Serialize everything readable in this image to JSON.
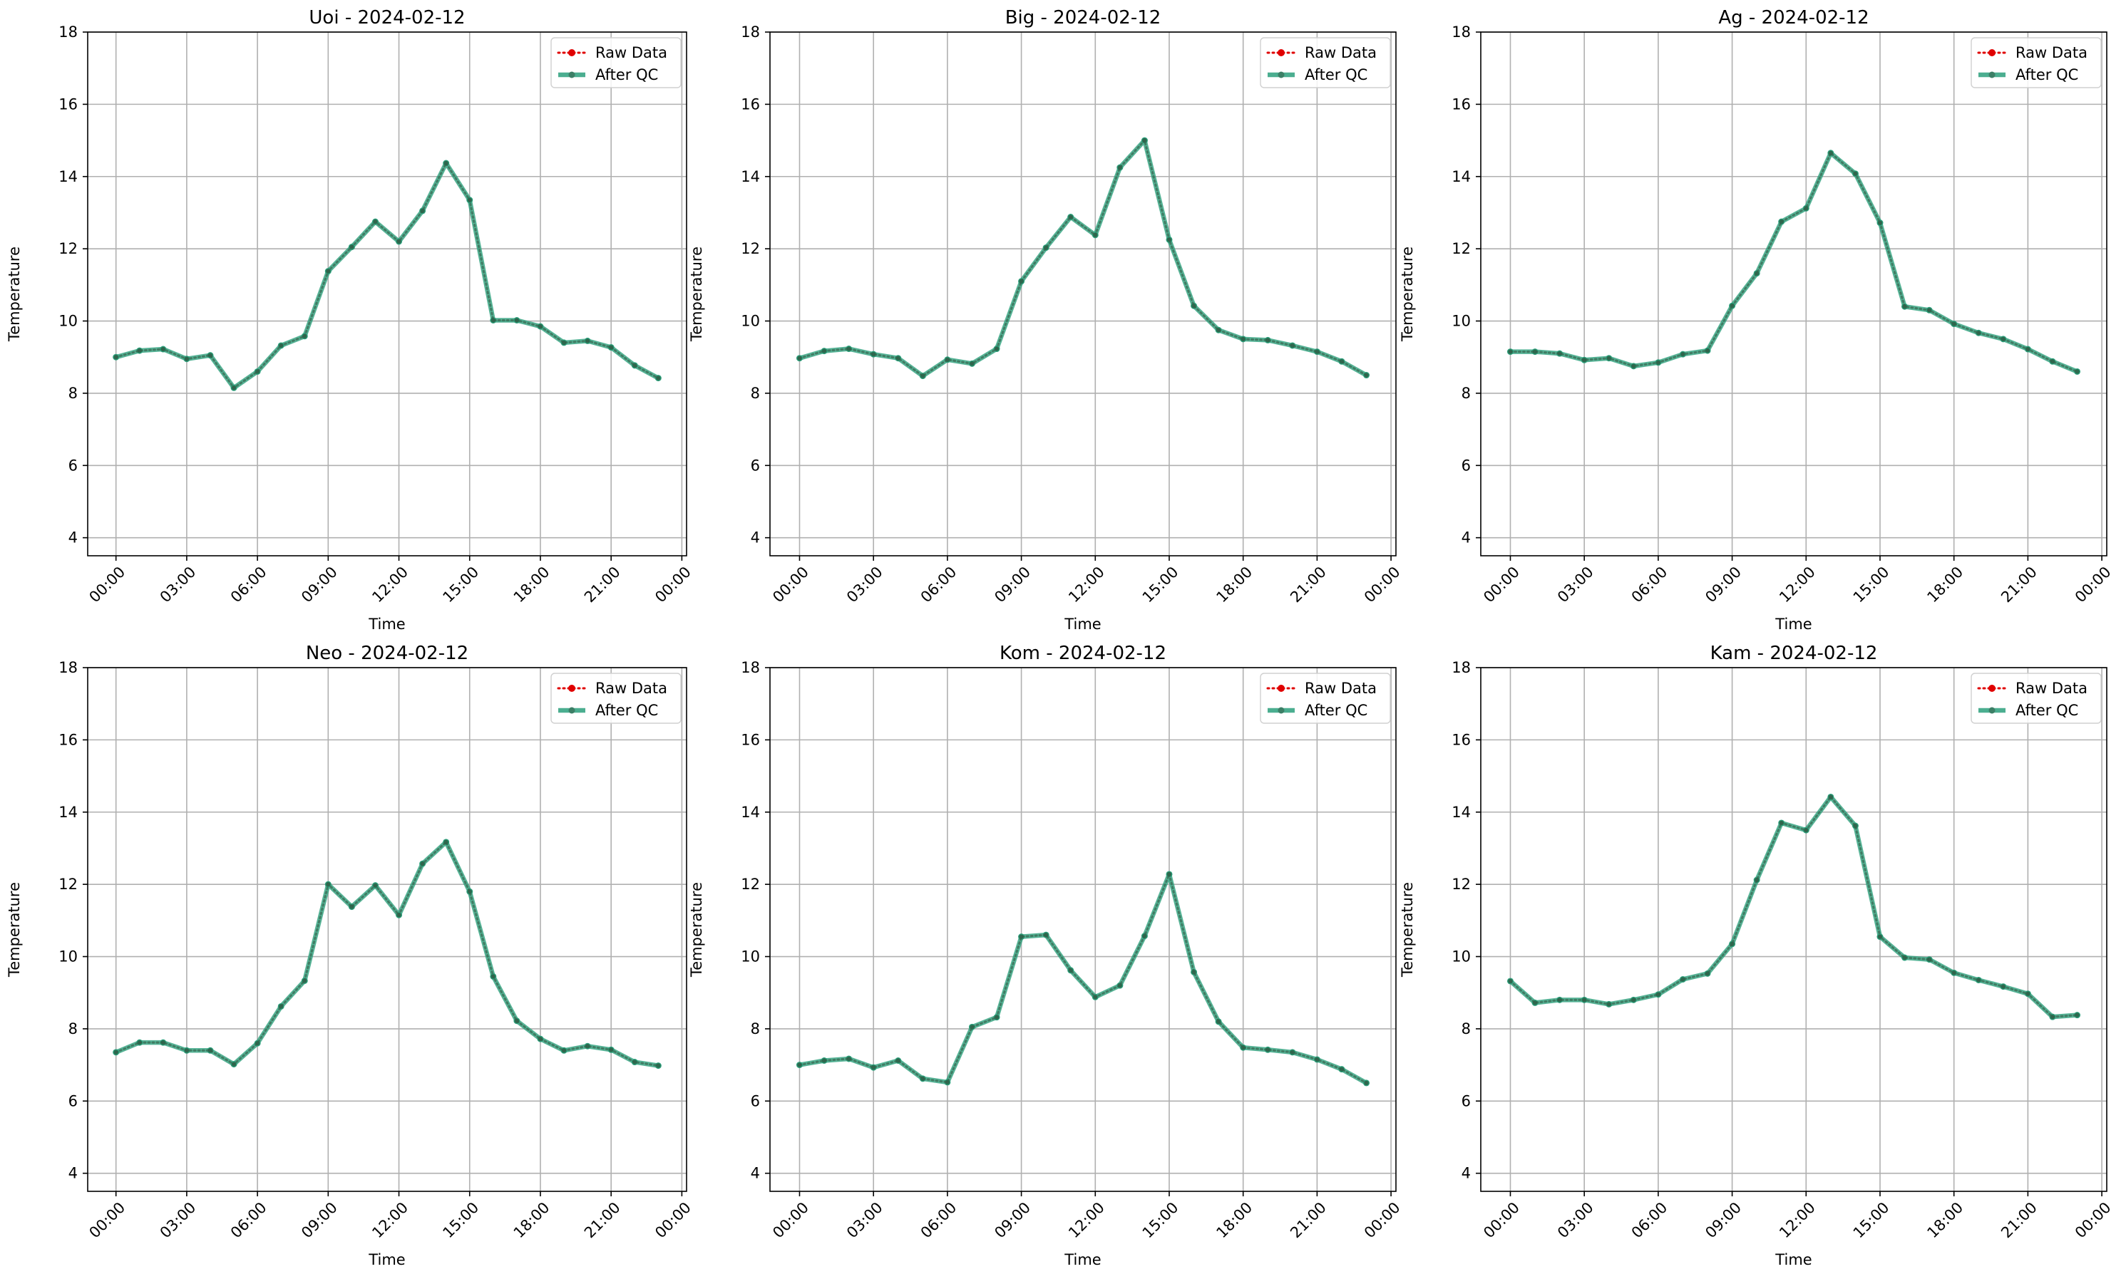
{
  "figure": {
    "panels": [
      {
        "title": "Uoi - 2024-02-12"
      },
      {
        "title": "Big - 2024-02-12"
      },
      {
        "title": "Ag - 2024-02-12"
      },
      {
        "title": "Neo - 2024-02-12"
      },
      {
        "title": "Kom - 2024-02-12"
      },
      {
        "title": "Kam - 2024-02-12"
      }
    ]
  },
  "colors": {
    "raw": "#e00000",
    "qc": "#2ca07c",
    "grid": "#b0b0b0",
    "axis": "#000000"
  },
  "chart_data": [
    {
      "type": "line",
      "title": "Uoi - 2024-02-12",
      "xlabel": "Time",
      "ylabel": "Temperature",
      "x": [
        "00:00",
        "01:00",
        "02:00",
        "03:00",
        "04:00",
        "05:00",
        "06:00",
        "07:00",
        "08:00",
        "09:00",
        "10:00",
        "11:00",
        "12:00",
        "13:00",
        "14:00",
        "15:00",
        "16:00",
        "17:00",
        "18:00",
        "19:00",
        "20:00",
        "21:00",
        "22:00",
        "23:00"
      ],
      "x_ticks": [
        "00:00",
        "03:00",
        "06:00",
        "09:00",
        "12:00",
        "15:00",
        "18:00",
        "21:00",
        "00:00"
      ],
      "y_ticks": [
        4,
        6,
        8,
        10,
        12,
        14,
        16,
        18
      ],
      "ylim": [
        3.5,
        18
      ],
      "legend": "top-right",
      "grid": true,
      "series": [
        {
          "name": "Raw Data",
          "values": [
            9.0,
            9.18,
            9.22,
            8.95,
            9.05,
            8.15,
            8.6,
            9.32,
            9.58,
            11.38,
            12.05,
            12.75,
            12.2,
            13.05,
            14.37,
            13.35,
            10.02,
            10.02,
            9.85,
            9.4,
            9.45,
            9.27,
            8.77,
            8.42
          ]
        },
        {
          "name": "After QC",
          "values": [
            9.0,
            9.18,
            9.22,
            8.95,
            9.05,
            8.15,
            8.6,
            9.32,
            9.58,
            11.38,
            12.05,
            12.75,
            12.2,
            13.05,
            14.37,
            13.35,
            10.02,
            10.02,
            9.85,
            9.4,
            9.45,
            9.27,
            8.77,
            8.42
          ]
        }
      ]
    },
    {
      "type": "line",
      "title": "Big - 2024-02-12",
      "xlabel": "Time",
      "ylabel": "Temperature",
      "x": [
        "00:00",
        "01:00",
        "02:00",
        "03:00",
        "04:00",
        "05:00",
        "06:00",
        "07:00",
        "08:00",
        "09:00",
        "10:00",
        "11:00",
        "12:00",
        "13:00",
        "14:00",
        "15:00",
        "16:00",
        "17:00",
        "18:00",
        "19:00",
        "20:00",
        "21:00",
        "22:00",
        "23:00"
      ],
      "x_ticks": [
        "00:00",
        "03:00",
        "06:00",
        "09:00",
        "12:00",
        "15:00",
        "18:00",
        "21:00",
        "00:00"
      ],
      "y_ticks": [
        4,
        6,
        8,
        10,
        12,
        14,
        16,
        18
      ],
      "ylim": [
        3.5,
        18
      ],
      "legend": "top-right",
      "grid": true,
      "series": [
        {
          "name": "Raw Data",
          "values": [
            8.97,
            9.17,
            9.23,
            9.08,
            8.97,
            8.48,
            8.93,
            8.82,
            9.23,
            11.1,
            12.03,
            12.88,
            12.38,
            14.25,
            15.0,
            12.25,
            10.42,
            9.75,
            9.5,
            9.47,
            9.32,
            9.15,
            8.88,
            8.5
          ]
        },
        {
          "name": "After QC",
          "values": [
            8.97,
            9.17,
            9.23,
            9.08,
            8.97,
            8.48,
            8.93,
            8.82,
            9.23,
            11.1,
            12.03,
            12.88,
            12.38,
            14.25,
            15.0,
            12.25,
            10.42,
            9.75,
            9.5,
            9.47,
            9.32,
            9.15,
            8.88,
            8.5
          ]
        }
      ]
    },
    {
      "type": "line",
      "title": "Ag - 2024-02-12",
      "xlabel": "Time",
      "ylabel": "Temperature",
      "x": [
        "00:00",
        "01:00",
        "02:00",
        "03:00",
        "04:00",
        "05:00",
        "06:00",
        "07:00",
        "08:00",
        "09:00",
        "10:00",
        "11:00",
        "12:00",
        "13:00",
        "14:00",
        "15:00",
        "16:00",
        "17:00",
        "18:00",
        "19:00",
        "20:00",
        "21:00",
        "22:00",
        "23:00"
      ],
      "x_ticks": [
        "00:00",
        "03:00",
        "06:00",
        "09:00",
        "12:00",
        "15:00",
        "18:00",
        "21:00",
        "00:00"
      ],
      "y_ticks": [
        4,
        6,
        8,
        10,
        12,
        14,
        16,
        18
      ],
      "ylim": [
        3.5,
        18
      ],
      "legend": "top-right",
      "grid": true,
      "series": [
        {
          "name": "Raw Data",
          "values": [
            9.15,
            9.15,
            9.1,
            8.92,
            8.97,
            8.75,
            8.85,
            9.08,
            9.18,
            10.42,
            11.32,
            12.75,
            13.12,
            14.65,
            14.08,
            12.72,
            10.4,
            10.3,
            9.92,
            9.67,
            9.5,
            9.22,
            8.88,
            8.6
          ]
        },
        {
          "name": "After QC",
          "values": [
            9.15,
            9.15,
            9.1,
            8.92,
            8.97,
            8.75,
            8.85,
            9.08,
            9.18,
            10.42,
            11.32,
            12.75,
            13.12,
            14.65,
            14.08,
            12.72,
            10.4,
            10.3,
            9.92,
            9.67,
            9.5,
            9.22,
            8.88,
            8.6
          ]
        }
      ]
    },
    {
      "type": "line",
      "title": "Neo - 2024-02-12",
      "xlabel": "Time",
      "ylabel": "Temperature",
      "x": [
        "00:00",
        "01:00",
        "02:00",
        "03:00",
        "04:00",
        "05:00",
        "06:00",
        "07:00",
        "08:00",
        "09:00",
        "10:00",
        "11:00",
        "12:00",
        "13:00",
        "14:00",
        "15:00",
        "16:00",
        "17:00",
        "18:00",
        "19:00",
        "20:00",
        "21:00",
        "22:00",
        "23:00"
      ],
      "x_ticks": [
        "00:00",
        "03:00",
        "06:00",
        "09:00",
        "12:00",
        "15:00",
        "18:00",
        "21:00",
        "00:00"
      ],
      "y_ticks": [
        4,
        6,
        8,
        10,
        12,
        14,
        16,
        18
      ],
      "ylim": [
        3.5,
        18
      ],
      "legend": "top-right",
      "grid": true,
      "series": [
        {
          "name": "Raw Data",
          "values": [
            7.35,
            7.62,
            7.62,
            7.4,
            7.4,
            7.02,
            7.6,
            8.62,
            9.33,
            12.0,
            11.38,
            11.97,
            11.15,
            12.57,
            13.17,
            11.8,
            9.45,
            8.22,
            7.72,
            7.4,
            7.52,
            7.42,
            7.08,
            6.98
          ]
        },
        {
          "name": "After QC",
          "values": [
            7.35,
            7.62,
            7.62,
            7.4,
            7.4,
            7.02,
            7.6,
            8.62,
            9.33,
            12.0,
            11.38,
            11.97,
            11.15,
            12.57,
            13.17,
            11.8,
            9.45,
            8.22,
            7.72,
            7.4,
            7.52,
            7.42,
            7.08,
            6.98
          ]
        }
      ]
    },
    {
      "type": "line",
      "title": "Kom - 2024-02-12",
      "xlabel": "Time",
      "ylabel": "Temperature",
      "x": [
        "00:00",
        "01:00",
        "02:00",
        "03:00",
        "04:00",
        "05:00",
        "06:00",
        "07:00",
        "08:00",
        "09:00",
        "10:00",
        "11:00",
        "12:00",
        "13:00",
        "14:00",
        "15:00",
        "16:00",
        "17:00",
        "18:00",
        "19:00",
        "20:00",
        "21:00",
        "22:00",
        "23:00"
      ],
      "x_ticks": [
        "00:00",
        "03:00",
        "06:00",
        "09:00",
        "12:00",
        "15:00",
        "18:00",
        "21:00",
        "00:00"
      ],
      "y_ticks": [
        4,
        6,
        8,
        10,
        12,
        14,
        16,
        18
      ],
      "ylim": [
        3.5,
        18
      ],
      "legend": "top-right",
      "grid": true,
      "series": [
        {
          "name": "Raw Data",
          "values": [
            7.0,
            7.12,
            7.17,
            6.93,
            7.12,
            6.62,
            6.52,
            8.05,
            8.32,
            10.55,
            10.6,
            9.62,
            8.88,
            9.2,
            10.57,
            12.28,
            9.57,
            8.2,
            7.48,
            7.42,
            7.35,
            7.15,
            6.88,
            6.5
          ]
        },
        {
          "name": "After QC",
          "values": [
            7.0,
            7.12,
            7.17,
            6.93,
            7.12,
            6.62,
            6.52,
            8.05,
            8.32,
            10.55,
            10.6,
            9.62,
            8.88,
            9.2,
            10.57,
            12.28,
            9.57,
            8.2,
            7.48,
            7.42,
            7.35,
            7.15,
            6.88,
            6.5
          ]
        }
      ]
    },
    {
      "type": "line",
      "title": "Kam - 2024-02-12",
      "xlabel": "Time",
      "ylabel": "Temperature",
      "x": [
        "00:00",
        "01:00",
        "02:00",
        "03:00",
        "04:00",
        "05:00",
        "06:00",
        "07:00",
        "08:00",
        "09:00",
        "10:00",
        "11:00",
        "12:00",
        "13:00",
        "14:00",
        "15:00",
        "16:00",
        "17:00",
        "18:00",
        "19:00",
        "20:00",
        "21:00",
        "22:00",
        "23:00"
      ],
      "x_ticks": [
        "00:00",
        "03:00",
        "06:00",
        "09:00",
        "12:00",
        "15:00",
        "18:00",
        "21:00",
        "00:00"
      ],
      "y_ticks": [
        4,
        6,
        8,
        10,
        12,
        14,
        16,
        18
      ],
      "ylim": [
        3.5,
        18
      ],
      "legend": "top-right",
      "grid": true,
      "series": [
        {
          "name": "Raw Data",
          "values": [
            9.32,
            8.72,
            8.8,
            8.8,
            8.68,
            8.8,
            8.95,
            9.37,
            9.53,
            10.35,
            12.12,
            13.7,
            13.5,
            14.42,
            13.62,
            10.55,
            9.97,
            9.92,
            9.55,
            9.35,
            9.17,
            8.97,
            8.33,
            8.38
          ]
        },
        {
          "name": "After QC",
          "values": [
            9.32,
            8.72,
            8.8,
            8.8,
            8.68,
            8.8,
            8.95,
            9.37,
            9.53,
            10.35,
            12.12,
            13.7,
            13.5,
            14.42,
            13.62,
            10.55,
            9.97,
            9.92,
            9.55,
            9.35,
            9.17,
            8.97,
            8.33,
            8.38
          ]
        }
      ]
    }
  ]
}
